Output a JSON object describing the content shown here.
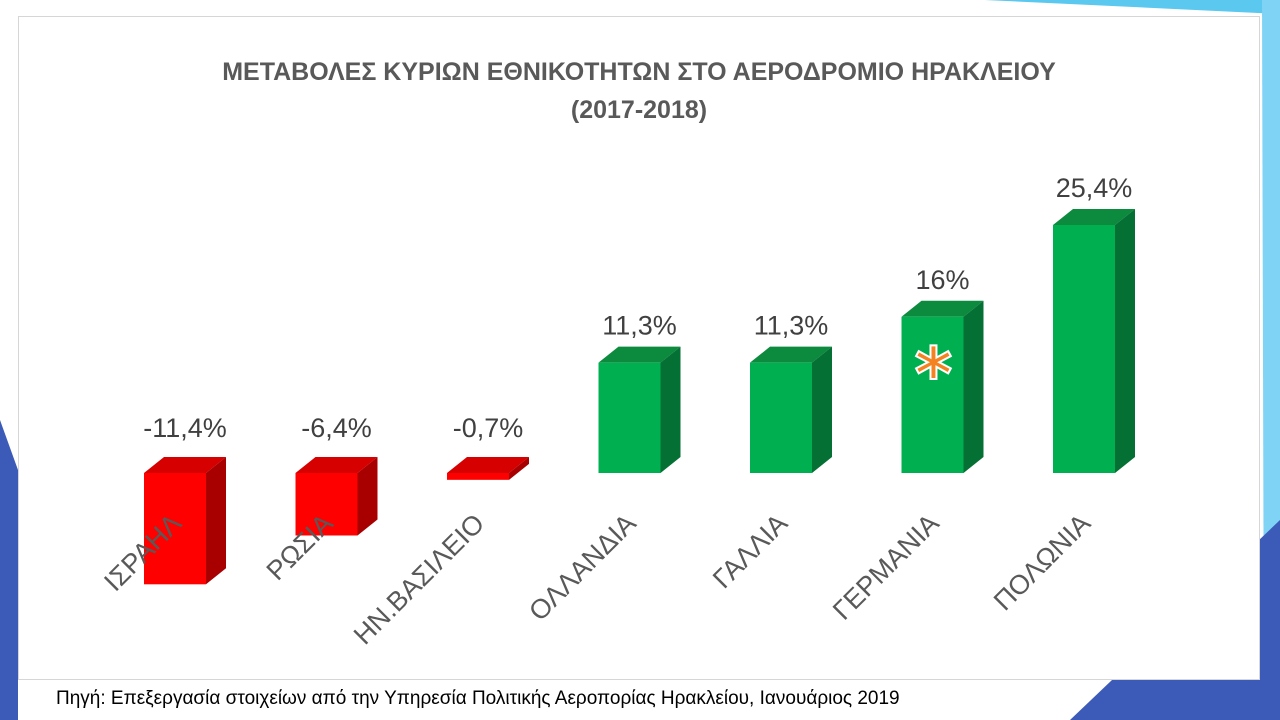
{
  "chart_data": {
    "type": "bar",
    "title": [
      "ΜΕΤΑΒΟΛΕΣ ΚΥΡΙΩΝ ΕΘΝΙΚΟΤΗΤΩΝ ΣΤΟ ΑΕΡΟΔΡΟΜΙΟ ΗΡΑΚΛΕΙΟΥ",
      "(2017-2018)"
    ],
    "categories": [
      "ΙΣΡΑΗΛ",
      "ΡΩΣΙΑ",
      "ΗΝ.ΒΑΣΙΛΕΙΟ",
      "ΟΛΛΑΝΔΙΑ",
      "ΓΑΛΛΙΑ",
      "ΓΕΡΜΑΝΙΑ",
      "ΠΟΛΩΝΙΑ"
    ],
    "values": [
      -11.4,
      -6.4,
      -0.7,
      11.3,
      11.3,
      16,
      25.4
    ],
    "data_labels": [
      "-11,4%",
      "-6,4%",
      "-0,7%",
      "11,3%",
      "11,3%",
      "16%",
      "25,4%"
    ],
    "xlabel": "",
    "ylabel": "",
    "bar_style": "3d-column",
    "grid": false,
    "legend": "none",
    "colors": {
      "positive": "#00b050",
      "positive_top": "#0c8a3e",
      "positive_side": "#047033",
      "negative": "#ff0000",
      "negative_top": "#d60000",
      "negative_side": "#a80000"
    },
    "annotations": [
      {
        "category": "ΓΕΡΜΑΝΙΑ",
        "marker": "asterisk",
        "text": "*",
        "color": "#f58220"
      }
    ]
  },
  "source": "Πηγή: Επεξεργασία στοιχείων από την Υπηρεσία Πολιτικής Αεροπορίας Ηρακλείου, Ιανουάριος 2019",
  "theme": {
    "accent_light": "#5bc8f0",
    "accent_mid": "#2c7fcf",
    "accent_dark": "#3c5bb8"
  }
}
